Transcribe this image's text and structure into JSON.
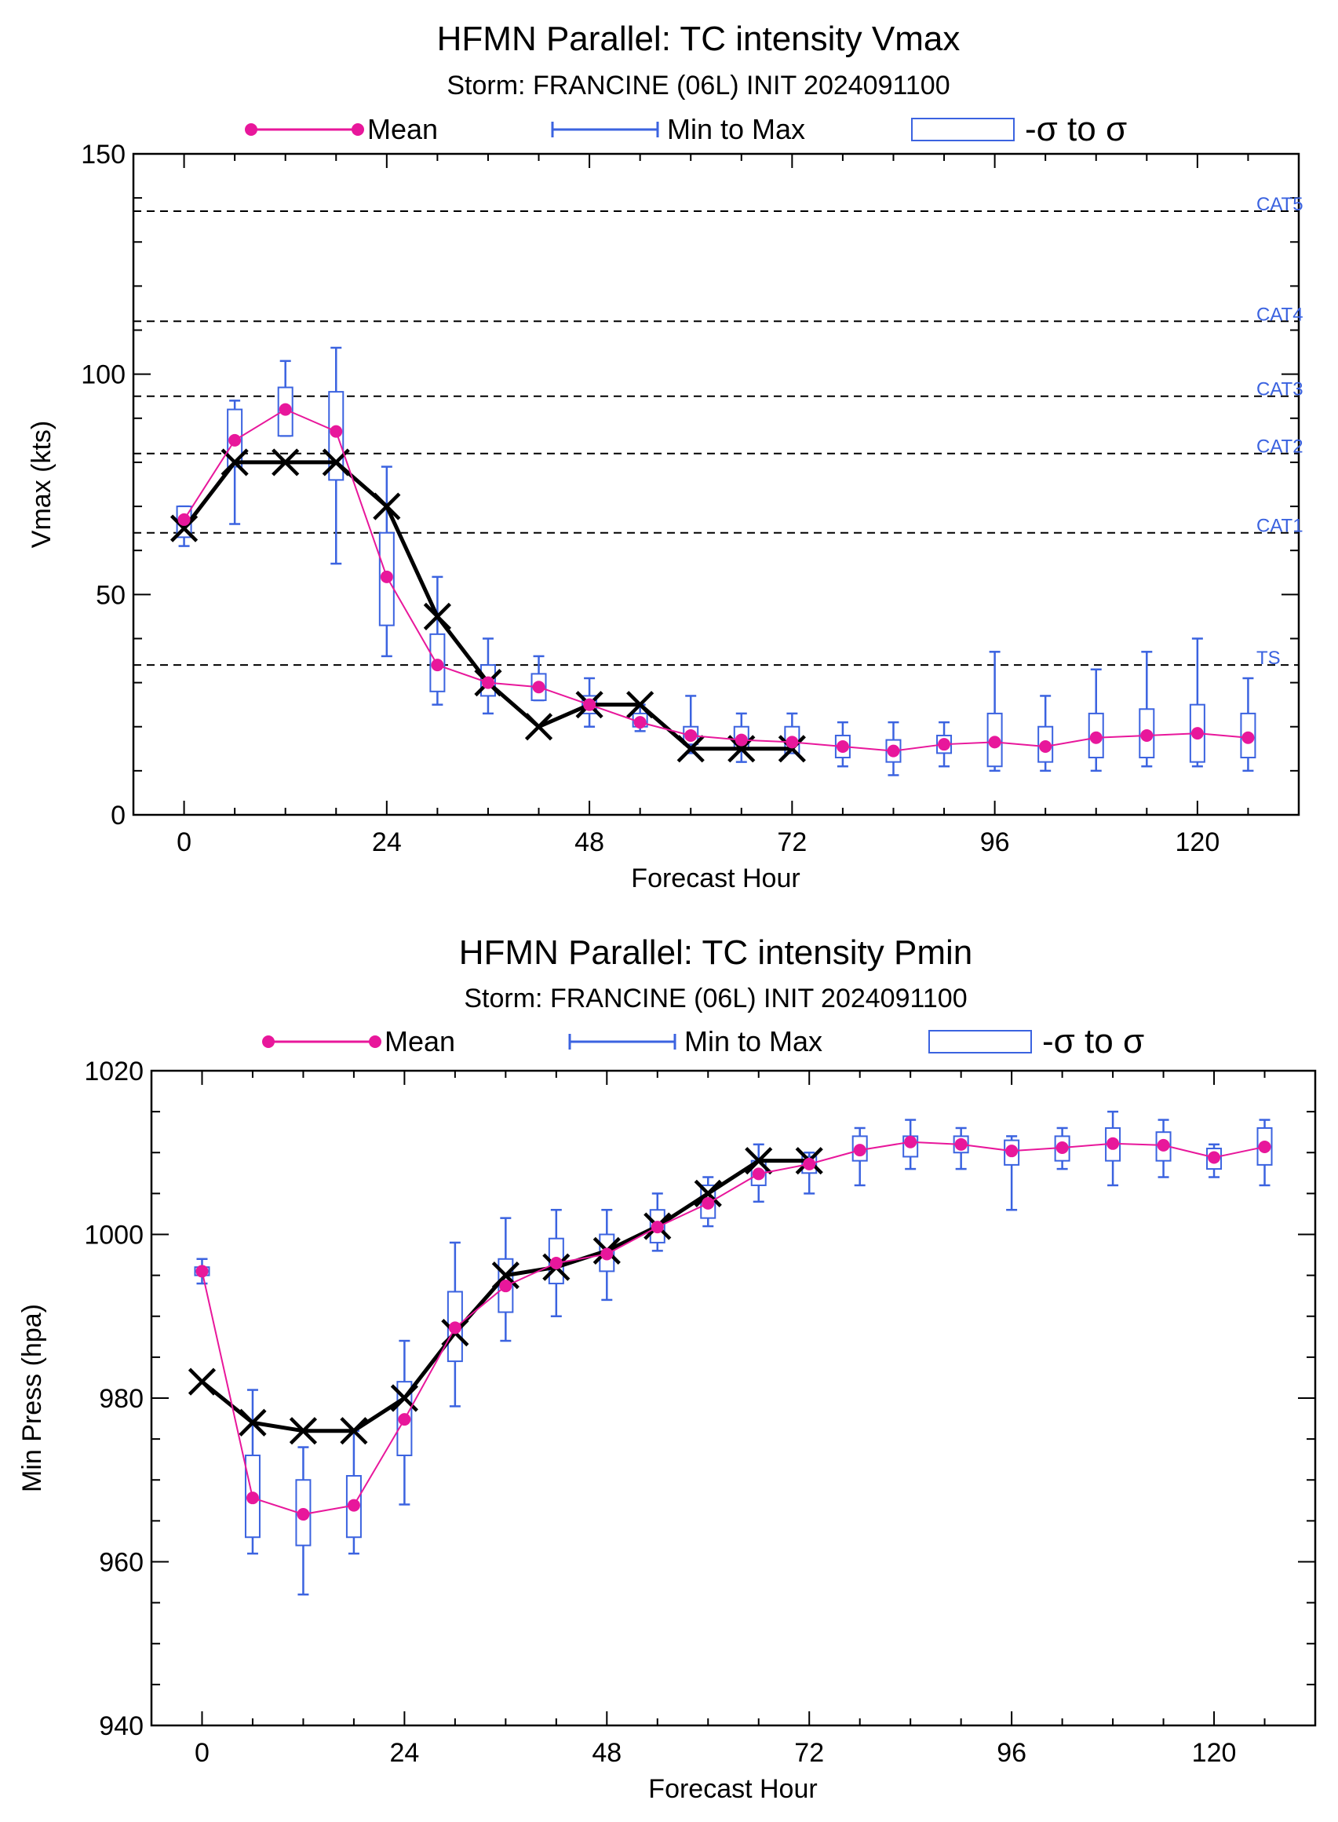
{
  "colors": {
    "mean": "#e8179b",
    "minmax": "#3b63e0",
    "box": "#3b63e0",
    "official": "#000000",
    "category_text": "#3b63e0"
  },
  "legend": {
    "mean": "Mean",
    "minmax": "Min to Max",
    "sigma": "-σ to σ"
  },
  "chart_data": [
    {
      "type": "line",
      "title": "HFMN Parallel: TC intensity Vmax",
      "subtitle": "Storm: FRANCINE (06L) INIT 2024091100",
      "xlabel": "Forecast Hour",
      "ylabel": "Vmax (kts)",
      "xlim": [
        -6,
        132
      ],
      "ylim": [
        0,
        150
      ],
      "xticks": [
        0,
        24,
        48,
        72,
        96,
        120
      ],
      "yticks": [
        0,
        50,
        100,
        150
      ],
      "grid": false,
      "legend_position": "top",
      "reference_lines": [
        {
          "label": "TS",
          "value": 34
        },
        {
          "label": "CAT1",
          "value": 64
        },
        {
          "label": "CAT2",
          "value": 82
        },
        {
          "label": "CAT3",
          "value": 95
        },
        {
          "label": "CAT4",
          "value": 112
        },
        {
          "label": "CAT5",
          "value": 137
        }
      ],
      "mean": {
        "x": [
          0,
          6,
          12,
          18,
          24,
          30,
          36,
          42,
          48,
          54,
          60,
          66,
          72,
          78,
          84,
          90,
          96,
          102,
          108,
          114,
          120,
          126
        ],
        "y": [
          67,
          85,
          92,
          87,
          54,
          34,
          30,
          29,
          25,
          21,
          18,
          17,
          16.5,
          15.5,
          14.5,
          16,
          16.5,
          15.5,
          17.5,
          18,
          18.5,
          17.5
        ]
      },
      "boxes": {
        "x": [
          0,
          6,
          12,
          18,
          24,
          30,
          36,
          42,
          48,
          54,
          60,
          66,
          72,
          78,
          84,
          90,
          96,
          102,
          108,
          114,
          120,
          126
        ],
        "min": [
          61,
          66,
          86,
          57,
          36,
          25,
          23,
          26,
          20,
          19,
          14,
          12,
          14,
          11,
          9,
          11,
          10,
          10,
          10,
          11,
          11,
          10
        ],
        "max": [
          70,
          94,
          103,
          106,
          79,
          54,
          40,
          36,
          31,
          25,
          27,
          23,
          23,
          21,
          21,
          21,
          37,
          27,
          33,
          37,
          40,
          31
        ],
        "lo": [
          63,
          79,
          86,
          76,
          43,
          28,
          27,
          26,
          23,
          20,
          16,
          15,
          14,
          13,
          12,
          14,
          11,
          12,
          13,
          13,
          12,
          13
        ],
        "hi": [
          70,
          92,
          97,
          96,
          64,
          41,
          34,
          32,
          27,
          23,
          20,
          20,
          20,
          18,
          17,
          18,
          23,
          20,
          23,
          24,
          25,
          23
        ]
      },
      "official": {
        "x": [
          0,
          6,
          12,
          18,
          24,
          30,
          36,
          42,
          48,
          54,
          60,
          66,
          72
        ],
        "y": [
          65,
          80,
          80,
          80,
          70,
          45,
          30,
          20,
          25,
          25,
          15,
          15,
          15
        ]
      }
    },
    {
      "type": "line",
      "title": "HFMN Parallel: TC intensity Pmin",
      "subtitle": "Storm: FRANCINE (06L) INIT 2024091100",
      "xlabel": "Forecast Hour",
      "ylabel": "Min Press (hpa)",
      "xlim": [
        -6,
        132
      ],
      "ylim": [
        940,
        1020
      ],
      "xticks": [
        0,
        24,
        48,
        72,
        96,
        120
      ],
      "yticks": [
        940,
        960,
        980,
        1000,
        1020
      ],
      "grid": false,
      "legend_position": "top",
      "mean": {
        "x": [
          0,
          6,
          12,
          18,
          24,
          30,
          36,
          42,
          48,
          54,
          60,
          66,
          72,
          78,
          84,
          90,
          96,
          102,
          108,
          114,
          120,
          126
        ],
        "y": [
          995.5,
          967.8,
          965.8,
          966.9,
          977.4,
          988.6,
          993.7,
          996.5,
          997.6,
          1000.9,
          1003.8,
          1007.4,
          1008.6,
          1010.3,
          1011.3,
          1011.0,
          1010.2,
          1010.6,
          1011.1,
          1010.9,
          1009.4,
          1010.7
        ]
      },
      "boxes": {
        "x": [
          0,
          6,
          12,
          18,
          24,
          30,
          36,
          42,
          48,
          54,
          60,
          66,
          72,
          78,
          84,
          90,
          96,
          102,
          108,
          114,
          120,
          126
        ],
        "min": [
          994,
          961,
          956,
          961,
          967,
          979,
          987,
          990,
          992,
          998,
          1001,
          1004,
          1005,
          1006,
          1008,
          1008,
          1003,
          1008,
          1006,
          1007,
          1007,
          1006
        ],
        "max": [
          997,
          981,
          974,
          976,
          987,
          999,
          1002,
          1003,
          1003,
          1005,
          1007,
          1011,
          1010,
          1013,
          1014,
          1013,
          1012,
          1013,
          1015,
          1014,
          1011,
          1014
        ],
        "lo": [
          995,
          963,
          962,
          963,
          973,
          984.5,
          990.5,
          994,
          995.5,
          999,
          1002,
          1006,
          1007.5,
          1009,
          1009.5,
          1010,
          1008.5,
          1009,
          1009,
          1009,
          1008,
          1008.5
        ],
        "hi": [
          996,
          973,
          970,
          970.5,
          982,
          993,
          997,
          999.5,
          1000,
          1003,
          1006,
          1009,
          1009.5,
          1012,
          1012,
          1012,
          1011.5,
          1012,
          1013,
          1012.5,
          1010.5,
          1013
        ]
      },
      "official": {
        "x": [
          0,
          6,
          12,
          18,
          24,
          30,
          36,
          42,
          48,
          54,
          60,
          66,
          72
        ],
        "y": [
          982,
          977,
          976,
          976,
          980,
          988,
          995,
          996,
          998,
          1001,
          1005,
          1009,
          1009
        ]
      }
    }
  ]
}
